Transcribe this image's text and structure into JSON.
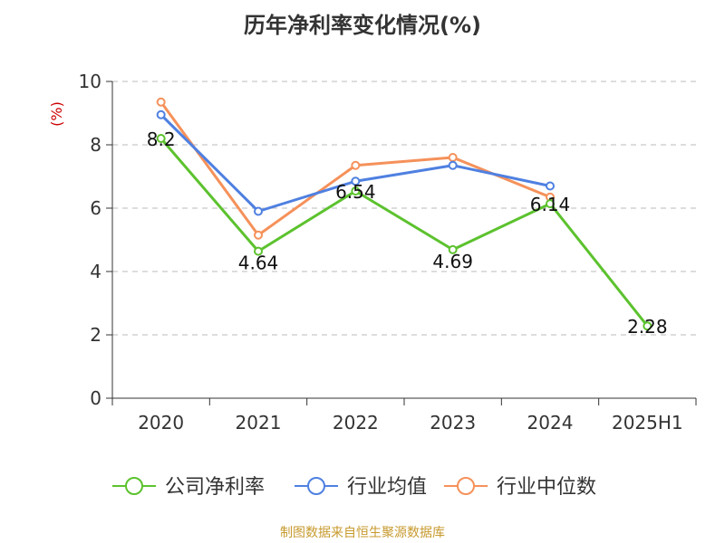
{
  "chart_data": {
    "type": "line",
    "title": "历年净利率变化情况(%)",
    "unit_label": "(%)",
    "categories": [
      "2020",
      "2021",
      "2022",
      "2023",
      "2024",
      "2025H1"
    ],
    "ylim": [
      0,
      10
    ],
    "yticks": [
      0,
      2,
      4,
      6,
      8,
      10
    ],
    "grid": true,
    "legend_position": "bottom",
    "series": [
      {
        "name": "公司净利率",
        "color": "#5cc22e",
        "values": [
          8.2,
          4.64,
          6.54,
          4.69,
          6.14,
          2.28
        ],
        "labels": [
          "8.2",
          "4.64",
          "6.54",
          "4.69",
          "6.14",
          "2.28"
        ]
      },
      {
        "name": "行业均值",
        "color": "#4f80e1",
        "values": [
          8.95,
          5.9,
          6.85,
          7.35,
          6.7,
          null
        ]
      },
      {
        "name": "行业中位数",
        "color": "#f5915a",
        "values": [
          9.35,
          5.15,
          7.35,
          7.6,
          6.35,
          null
        ]
      }
    ]
  },
  "footer": {
    "source": "制图数据来自恒生聚源数据库"
  }
}
